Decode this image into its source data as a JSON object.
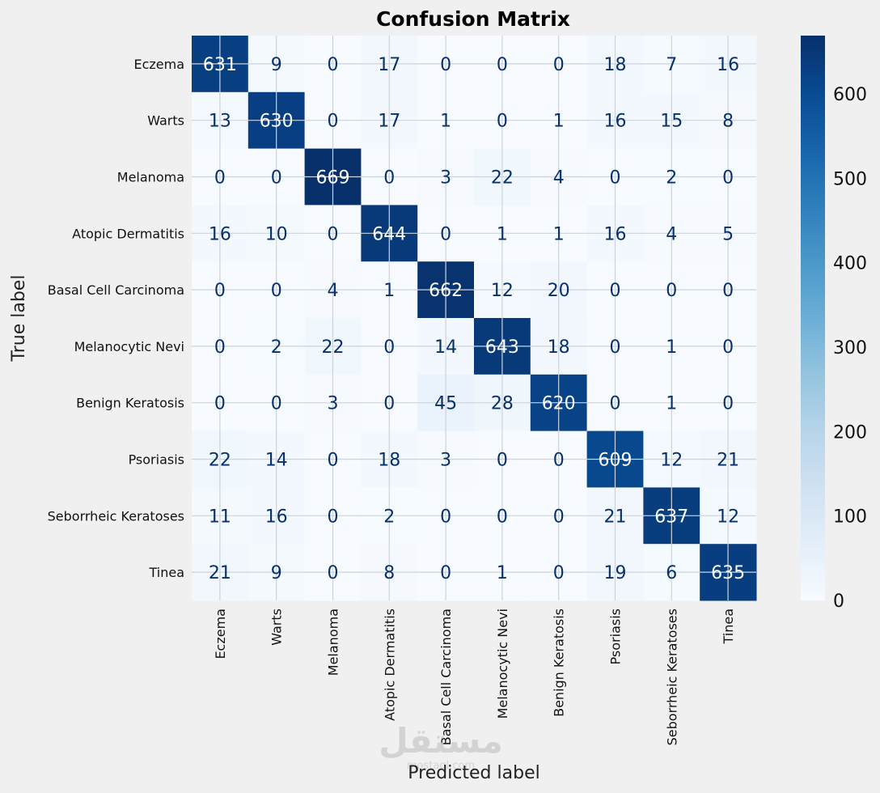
{
  "chart_data": {
    "type": "heatmap",
    "title": "Confusion Matrix",
    "xlabel": "Predicted label",
    "ylabel": "True label",
    "labels": [
      "Eczema",
      "Warts",
      "Melanoma",
      "Atopic Dermatitis",
      "Basal Cell Carcinoma",
      "Melanocytic Nevi",
      "Benign Keratosis",
      "Psoriasis",
      "Seborrheic Keratoses",
      "Tinea"
    ],
    "matrix": [
      [
        631,
        9,
        0,
        17,
        0,
        0,
        0,
        18,
        7,
        16
      ],
      [
        13,
        630,
        0,
        17,
        1,
        0,
        1,
        16,
        15,
        8
      ],
      [
        0,
        0,
        669,
        0,
        3,
        22,
        4,
        0,
        2,
        0
      ],
      [
        16,
        10,
        0,
        644,
        0,
        1,
        1,
        16,
        4,
        5
      ],
      [
        0,
        0,
        4,
        1,
        662,
        12,
        20,
        0,
        0,
        0
      ],
      [
        0,
        2,
        22,
        0,
        14,
        643,
        18,
        0,
        1,
        0
      ],
      [
        0,
        0,
        3,
        0,
        45,
        28,
        620,
        0,
        1,
        0
      ],
      [
        22,
        14,
        0,
        18,
        3,
        0,
        0,
        609,
        12,
        21
      ],
      [
        11,
        16,
        0,
        2,
        0,
        0,
        0,
        21,
        637,
        12
      ],
      [
        21,
        9,
        0,
        8,
        0,
        1,
        0,
        19,
        6,
        635
      ]
    ],
    "colormap": "Blues",
    "vmin": 0,
    "vmax": 669,
    "colorbar_ticks": [
      0,
      100,
      200,
      300,
      400,
      500,
      600
    ],
    "grid": true
  },
  "watermark": {
    "text": "مستقل",
    "sub": "mostaql.com"
  }
}
